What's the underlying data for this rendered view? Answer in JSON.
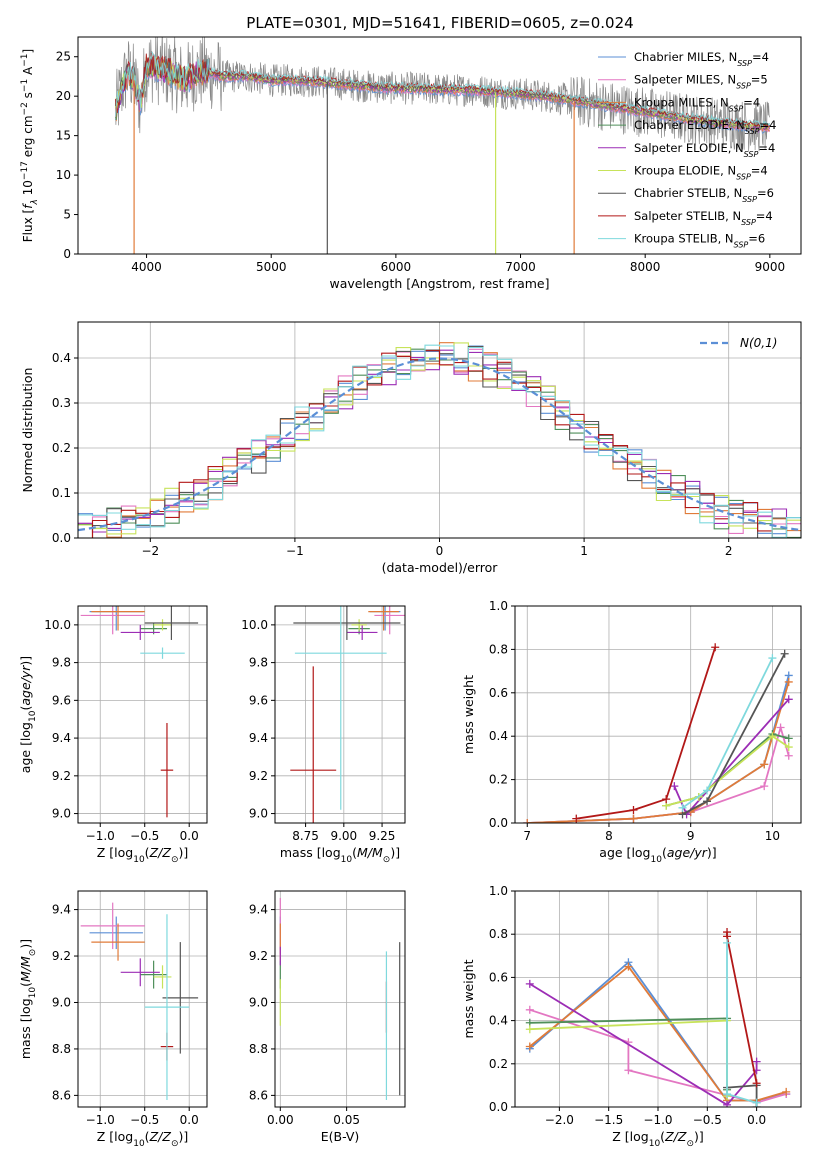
{
  "figure": {
    "title": "PLATE=0301, MJD=51641, FIBERID=0605, z=0.024"
  },
  "colors": {
    "Chabrier MILES": "#5b8fd6",
    "Salpeter MILES": "#e377c2",
    "Kroupa MILES": "#e07b39",
    "Chabrier ELODIE": "#4f8f5a",
    "Salpeter ELODIE": "#9c2db5",
    "Kroupa ELODIE": "#c7e35a",
    "Chabrier STELIB": "#555555",
    "Salpeter STELIB": "#b21818",
    "Kroupa STELIB": "#7fd9dd",
    "gaussian": "#5b8fd6",
    "data": "#888888"
  },
  "chart_data": [
    {
      "id": "spectrum",
      "type": "line",
      "title": "PLATE=0301, MJD=51641, FIBERID=0605, z=0.024",
      "xlabel": "wavelength [Angstrom, rest frame]",
      "ylabel": "Flux [f_λ 10^-17 erg cm^-2 s^-1 A^-1]",
      "xlim": [
        3450,
        9250
      ],
      "ylim": [
        0,
        27.5
      ],
      "xticks": [
        4000,
        5000,
        6000,
        7000,
        8000,
        9000
      ],
      "yticks": [
        0,
        5,
        10,
        15,
        20,
        25
      ],
      "grid": false,
      "legend_position": "upper right",
      "legend": [
        {
          "model": "Chabrier MILES",
          "nssp": "4"
        },
        {
          "model": "Salpeter MILES",
          "nssp": "5"
        },
        {
          "model": "Kroupa MILES",
          "nssp": "4"
        },
        {
          "model": "Chabrier ELODIE",
          "nssp": "4"
        },
        {
          "model": "Salpeter ELODIE",
          "nssp": "4"
        },
        {
          "model": "Kroupa ELODIE",
          "nssp": "4"
        },
        {
          "model": "Chabrier STELIB",
          "nssp": "6"
        },
        {
          "model": "Salpeter STELIB",
          "nssp": "4"
        },
        {
          "model": "Kroupa STELIB",
          "nssp": "6"
        }
      ],
      "model_curve": {
        "x": [
          3750,
          3800,
          3850,
          3900,
          3950,
          4000,
          4100,
          4200,
          4300,
          4400,
          4500,
          4600,
          4800,
          5000,
          5200,
          5400,
          5600,
          5800,
          6000,
          6200,
          6400,
          6600,
          6800,
          7000,
          7200,
          7400,
          7600,
          7800,
          8000,
          8200,
          8400,
          8600,
          8800,
          9000
        ],
        "y": [
          18,
          21,
          23,
          22,
          19,
          24,
          23.5,
          23,
          22,
          23,
          23,
          22.5,
          22.5,
          22,
          22,
          21.8,
          21.5,
          21.2,
          21,
          21,
          20.8,
          20.8,
          20.5,
          20.3,
          20,
          19.5,
          19,
          18.5,
          18,
          17.5,
          17,
          16.6,
          16.3,
          16
        ]
      },
      "data_noise_amplitude": 3,
      "vertical_drops": [
        {
          "model": "Kroupa MILES",
          "x": 3900
        },
        {
          "model": "Chabrier STELIB",
          "x": 5450
        },
        {
          "model": "Kroupa ELODIE",
          "x": 6800
        },
        {
          "model": "Kroupa MILES",
          "x": 7430
        }
      ]
    },
    {
      "id": "residual-histogram",
      "type": "bar",
      "xlabel": "(data-model)/error",
      "ylabel": "Normed distribution",
      "xlim": [
        -2.5,
        2.5
      ],
      "ylim": [
        0,
        0.48
      ],
      "xticks": [
        -2,
        -1,
        0,
        1,
        2
      ],
      "yticks": [
        0.0,
        0.1,
        0.2,
        0.3,
        0.4
      ],
      "grid": true,
      "legend_position": "upper right",
      "legend": [
        {
          "label": "N(0,1)",
          "style": "dashed"
        }
      ],
      "bin_width": 0.1,
      "bins_start": -2.5,
      "reference_curve": "gaussian(mean=0, sigma=1)",
      "series_jitter": 0.04
    },
    {
      "id": "age-vs-Z",
      "type": "scatter",
      "xlabel": "Z [log10(Z/Z_sun)]",
      "ylabel": "age [log10(age/yr)]",
      "xlim": [
        -1.25,
        0.2
      ],
      "ylim": [
        8.95,
        10.1
      ],
      "xticks": [
        -1.0,
        -0.5,
        0.0
      ],
      "yticks": [
        9.0,
        9.2,
        9.4,
        9.6,
        9.8,
        10.0
      ],
      "grid": true,
      "points": [
        {
          "model": "Chabrier MILES",
          "x": -0.82,
          "y": 10.07,
          "xerr": 0.3,
          "yerr": 0.1
        },
        {
          "model": "Salpeter MILES",
          "x": -0.86,
          "y": 10.05,
          "xerr": 0.36,
          "yerr": 0.1
        },
        {
          "model": "Kroupa MILES",
          "x": -0.8,
          "y": 10.07,
          "xerr": 0.3,
          "yerr": 0.1
        },
        {
          "model": "Chabrier ELODIE",
          "x": -0.4,
          "y": 9.98,
          "xerr": 0.15,
          "yerr": 0.03
        },
        {
          "model": "Salpeter ELODIE",
          "x": -0.55,
          "y": 9.96,
          "xerr": 0.22,
          "yerr": 0.04
        },
        {
          "model": "Kroupa ELODIE",
          "x": -0.3,
          "y": 10.0,
          "xerr": 0.1,
          "yerr": 0.03
        },
        {
          "model": "Chabrier STELIB",
          "x": -0.2,
          "y": 10.01,
          "xerr": 0.3,
          "yerr": 0.09
        },
        {
          "model": "Salpeter STELIB",
          "x": -0.25,
          "y": 9.23,
          "xerr": 0.07,
          "yerr": 0.25
        },
        {
          "model": "Kroupa STELIB",
          "x": -0.3,
          "y": 9.85,
          "xerr": 0.25,
          "yerr": 0.03
        }
      ]
    },
    {
      "id": "age-vs-mass",
      "type": "scatter",
      "xlabel": "mass [log10(M/M_sun)]",
      "ylabel": "",
      "xlim": [
        8.55,
        9.4
      ],
      "ylim": [
        8.95,
        10.1
      ],
      "xticks": [
        8.75,
        9.0,
        9.25
      ],
      "yticks": [
        9.0,
        9.2,
        9.4,
        9.6,
        9.8,
        10.0
      ],
      "grid": true,
      "points": [
        {
          "model": "Chabrier MILES",
          "x": 9.27,
          "y": 10.07,
          "xerr": 0.1,
          "yerr": 0.1
        },
        {
          "model": "Salpeter MILES",
          "x": 9.3,
          "y": 10.05,
          "xerr": 0.1,
          "yerr": 0.1
        },
        {
          "model": "Kroupa MILES",
          "x": 9.26,
          "y": 10.07,
          "xerr": 0.1,
          "yerr": 0.1
        },
        {
          "model": "Chabrier ELODIE",
          "x": 9.1,
          "y": 9.98,
          "xerr": 0.07,
          "yerr": 0.03
        },
        {
          "model": "Salpeter ELODIE",
          "x": 9.12,
          "y": 9.96,
          "xerr": 0.1,
          "yerr": 0.04
        },
        {
          "model": "Kroupa ELODIE",
          "x": 9.1,
          "y": 10.0,
          "xerr": 0.05,
          "yerr": 0.03
        },
        {
          "model": "Chabrier STELIB",
          "x": 9.02,
          "y": 10.01,
          "xerr": 0.35,
          "yerr": 0.09
        },
        {
          "model": "Salpeter STELIB",
          "x": 8.8,
          "y": 9.23,
          "xerr": 0.15,
          "yerr": 0.55
        },
        {
          "model": "Kroupa STELIB",
          "x": 8.98,
          "y": 9.85,
          "xerr": 0.3,
          "yerr": 0.83
        }
      ]
    },
    {
      "id": "mass-weight-vs-age",
      "type": "line",
      "xlabel": "age [log10(age/yr)]",
      "ylabel": "mass weight",
      "xlim": [
        6.85,
        10.35
      ],
      "ylim": [
        0,
        1
      ],
      "xticks": [
        7,
        8,
        9,
        10
      ],
      "yticks": [
        0.0,
        0.2,
        0.4,
        0.6,
        0.8,
        1.0
      ],
      "grid": true,
      "series": [
        {
          "model": "Chabrier MILES",
          "x": [
            7.0,
            8.3,
            9.0,
            9.9,
            10.2
          ],
          "y": [
            0.0,
            0.02,
            0.05,
            0.27,
            0.68
          ]
        },
        {
          "model": "Salpeter MILES",
          "x": [
            7.0,
            8.3,
            9.0,
            9.9,
            10.1,
            10.2
          ],
          "y": [
            0.0,
            0.02,
            0.05,
            0.17,
            0.44,
            0.31
          ]
        },
        {
          "model": "Kroupa MILES",
          "x": [
            7.0,
            8.3,
            9.0,
            9.9,
            10.2
          ],
          "y": [
            0.0,
            0.02,
            0.05,
            0.27,
            0.65
          ]
        },
        {
          "model": "Chabrier ELODIE",
          "x": [
            8.7,
            9.1,
            10.0,
            10.2
          ],
          "y": [
            0.08,
            0.12,
            0.41,
            0.39
          ]
        },
        {
          "model": "Salpeter ELODIE",
          "x": [
            8.8,
            8.95,
            10.2
          ],
          "y": [
            0.17,
            0.04,
            0.57
          ]
        },
        {
          "model": "Kroupa ELODIE",
          "x": [
            8.7,
            9.1,
            10.0,
            10.2
          ],
          "y": [
            0.08,
            0.12,
            0.4,
            0.35
          ]
        },
        {
          "model": "Chabrier STELIB",
          "x": [
            8.9,
            9.2,
            10.15
          ],
          "y": [
            0.04,
            0.1,
            0.78
          ]
        },
        {
          "model": "Salpeter STELIB",
          "x": [
            7.6,
            8.3,
            8.7,
            9.3
          ],
          "y": [
            0.02,
            0.06,
            0.11,
            0.81
          ]
        },
        {
          "model": "Kroupa STELIB",
          "x": [
            8.9,
            9.2,
            10.0
          ],
          "y": [
            0.07,
            0.15,
            0.76
          ]
        }
      ]
    },
    {
      "id": "mass-vs-Z",
      "type": "scatter",
      "xlabel": "Z [log10(Z/Z_sun)]",
      "ylabel": "mass [log10(M/M_sun)]",
      "xlim": [
        -1.25,
        0.2
      ],
      "ylim": [
        8.55,
        9.48
      ],
      "xticks": [
        -1.0,
        -0.5,
        0.0
      ],
      "yticks": [
        8.6,
        8.8,
        9.0,
        9.2,
        9.4
      ],
      "grid": true,
      "points": [
        {
          "model": "Chabrier MILES",
          "x": -0.82,
          "y": 9.3,
          "xerr": 0.3,
          "yerr": 0.07
        },
        {
          "model": "Salpeter MILES",
          "x": -0.86,
          "y": 9.33,
          "xerr": 0.36,
          "yerr": 0.1
        },
        {
          "model": "Kroupa MILES",
          "x": -0.8,
          "y": 9.26,
          "xerr": 0.3,
          "yerr": 0.08
        },
        {
          "model": "Chabrier ELODIE",
          "x": -0.4,
          "y": 9.12,
          "xerr": 0.15,
          "yerr": 0.06
        },
        {
          "model": "Salpeter ELODIE",
          "x": -0.55,
          "y": 9.13,
          "xerr": 0.22,
          "yerr": 0.06
        },
        {
          "model": "Kroupa ELODIE",
          "x": -0.3,
          "y": 9.11,
          "xerr": 0.1,
          "yerr": 0.05
        },
        {
          "model": "Chabrier STELIB",
          "x": -0.1,
          "y": 9.02,
          "xerr": 0.2,
          "yerr": 0.24
        },
        {
          "model": "Salpeter STELIB",
          "x": -0.25,
          "y": 8.81,
          "xerr": 0.07,
          "yerr": 0.06
        },
        {
          "model": "Kroupa STELIB",
          "x": -0.25,
          "y": 8.98,
          "xerr": 0.25,
          "yerr": 0.4
        }
      ]
    },
    {
      "id": "mass-vs-EBV",
      "type": "scatter",
      "xlabel": "E(B-V)",
      "ylabel": "",
      "xlim": [
        -0.004,
        0.094
      ],
      "ylim": [
        8.55,
        9.48
      ],
      "xticks": [
        0.0,
        0.05
      ],
      "yticks": [
        8.6,
        8.8,
        9.0,
        9.2,
        9.4
      ],
      "grid": true,
      "points": [
        {
          "model": "Chabrier MILES",
          "x": 0.0,
          "y": 9.3,
          "xerr": 0,
          "yerr": 0.07
        },
        {
          "model": "Salpeter MILES",
          "x": 0.0,
          "y": 9.33,
          "xerr": 0,
          "yerr": 0.12
        },
        {
          "model": "Kroupa MILES",
          "x": 0.0,
          "y": 9.26,
          "xerr": 0,
          "yerr": 0.08
        },
        {
          "model": "Chabrier ELODIE",
          "x": 0.0,
          "y": 9.12,
          "xerr": 0,
          "yerr": 0.06
        },
        {
          "model": "Salpeter ELODIE",
          "x": 0.0,
          "y": 9.2,
          "xerr": 0,
          "yerr": 0.04
        },
        {
          "model": "Kroupa ELODIE",
          "x": 0.0,
          "y": 9.0,
          "xerr": 0,
          "yerr": 0.1
        },
        {
          "model": "Chabrier STELIB",
          "x": 0.09,
          "y": 8.93,
          "xerr": 0,
          "yerr": 0.33
        },
        {
          "model": "Salpeter STELIB",
          "x": 0.08,
          "y": 8.98,
          "xerr": 0,
          "yerr": 0.11
        },
        {
          "model": "Kroupa STELIB",
          "x": 0.08,
          "y": 8.9,
          "xerr": 0,
          "yerr": 0.32
        }
      ]
    },
    {
      "id": "mass-weight-vs-Z",
      "type": "line",
      "xlabel": "Z [log10(Z/Z_sun)]",
      "ylabel": "mass weight",
      "xlim": [
        -2.45,
        0.45
      ],
      "ylim": [
        0,
        1
      ],
      "xticks": [
        -2.0,
        -1.5,
        -1.0,
        -0.5,
        0.0
      ],
      "yticks": [
        0.0,
        0.2,
        0.4,
        0.6,
        0.8,
        1.0
      ],
      "grid": true,
      "series": [
        {
          "model": "Chabrier MILES",
          "x": [
            -2.3,
            -1.3,
            -0.3,
            0.0,
            0.3
          ],
          "y": [
            0.27,
            0.67,
            0.03,
            0.03,
            0.06
          ]
        },
        {
          "model": "Salpeter MILES",
          "x": [
            -2.3,
            -1.3,
            -1.3,
            0.0,
            0.3
          ],
          "y": [
            0.45,
            0.3,
            0.17,
            0.02,
            0.06
          ]
        },
        {
          "model": "Kroupa MILES",
          "x": [
            -2.3,
            -1.3,
            -0.3,
            0.0,
            0.3
          ],
          "y": [
            0.28,
            0.65,
            0.03,
            0.03,
            0.07
          ]
        },
        {
          "model": "Chabrier ELODIE",
          "x": [
            -2.3,
            -0.3,
            -0.3
          ],
          "y": [
            0.39,
            0.41,
            0.08
          ]
        },
        {
          "model": "Salpeter ELODIE",
          "x": [
            -2.3,
            -0.3,
            0.0,
            0.0
          ],
          "y": [
            0.57,
            0.01,
            0.17,
            0.21
          ]
        },
        {
          "model": "Kroupa ELODIE",
          "x": [
            -2.3,
            -0.3,
            -0.3
          ],
          "y": [
            0.36,
            0.4,
            0.05
          ]
        },
        {
          "model": "Chabrier STELIB",
          "x": [
            -0.3,
            0.0,
            0.0
          ],
          "y": [
            0.09,
            0.1,
            0.0
          ]
        },
        {
          "model": "Salpeter STELIB",
          "x": [
            -0.3,
            -0.3,
            0.0
          ],
          "y": [
            0.81,
            0.79,
            0.11
          ]
        },
        {
          "model": "Kroupa STELIB",
          "x": [
            -0.3,
            -0.3,
            0.0
          ],
          "y": [
            0.76,
            0.06,
            0.02
          ]
        }
      ]
    }
  ]
}
